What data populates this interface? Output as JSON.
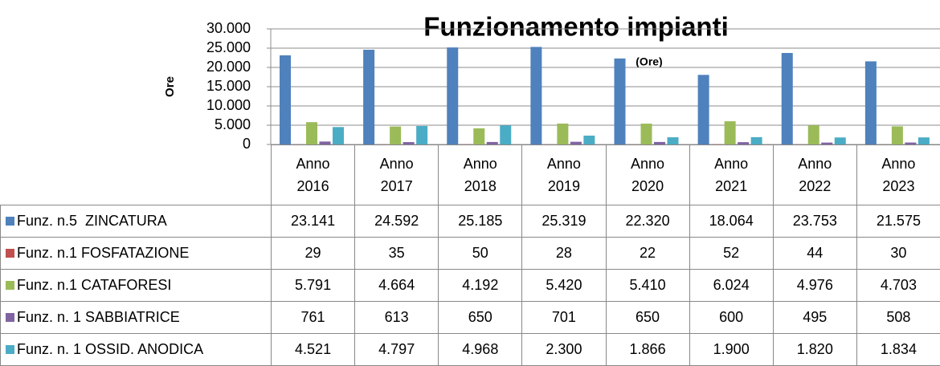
{
  "chart_data": {
    "type": "bar",
    "title": "Funzionamento impianti",
    "subtitle": "(Ore)",
    "y_label": "Ore",
    "categories": [
      "Anno 2016",
      "Anno 2017",
      "Anno 2018",
      "Anno 2019",
      "Anno 2020",
      "Anno 2021",
      "Anno 2022",
      "Anno 2023"
    ],
    "series": [
      {
        "name": "Funz. n.5  ZINCATURA",
        "color": "#4f81bd",
        "values": [
          23141,
          24592,
          25185,
          25319,
          22320,
          18064,
          23753,
          21575
        ],
        "value_labels": [
          "23.141",
          "24.592",
          "25.185",
          "25.319",
          "22.320",
          "18.064",
          "23.753",
          "21.575"
        ]
      },
      {
        "name": "Funz. n.1 FOSFATAZIONE",
        "color": "#c0504d",
        "values": [
          29,
          35,
          50,
          28,
          22,
          52,
          44,
          30
        ],
        "value_labels": [
          "29",
          "35",
          "50",
          "28",
          "22",
          "52",
          "44",
          "30"
        ]
      },
      {
        "name": "Funz. n.1 CATAFORESI",
        "color": "#9bbb59",
        "values": [
          5791,
          4664,
          4192,
          5420,
          5410,
          6024,
          4976,
          4703
        ],
        "value_labels": [
          "5.791",
          "4.664",
          "4.192",
          "5.420",
          "5.410",
          "6.024",
          "4.976",
          "4.703"
        ]
      },
      {
        "name": "Funz. n. 1 SABBIATRICE",
        "color": "#8064a2",
        "values": [
          761,
          613,
          650,
          701,
          650,
          600,
          495,
          508
        ],
        "value_labels": [
          "761",
          "613",
          "650",
          "701",
          "650",
          "600",
          "495",
          "508"
        ]
      },
      {
        "name": "Funz. n. 1 OSSID. ANODICA",
        "color": "#4bacc6",
        "values": [
          4521,
          4797,
          4968,
          2300,
          1866,
          1900,
          1820,
          1834
        ],
        "value_labels": [
          "4.521",
          "4.797",
          "4.968",
          "2.300",
          "1.866",
          "1.900",
          "1.820",
          "1.834"
        ]
      }
    ],
    "ylim": [
      0,
      30000
    ],
    "yticks": [
      0,
      {
        "value": 5000,
        "label": "5.000"
      },
      {
        "value": 10000,
        "label": "10.000"
      },
      {
        "value": 15000,
        "label": "15.000"
      },
      {
        "value": 20000,
        "label": "20.000"
      },
      {
        "value": 25000,
        "label": "25.000"
      },
      {
        "value": 30000,
        "label": "30.000"
      }
    ],
    "grid": true
  }
}
